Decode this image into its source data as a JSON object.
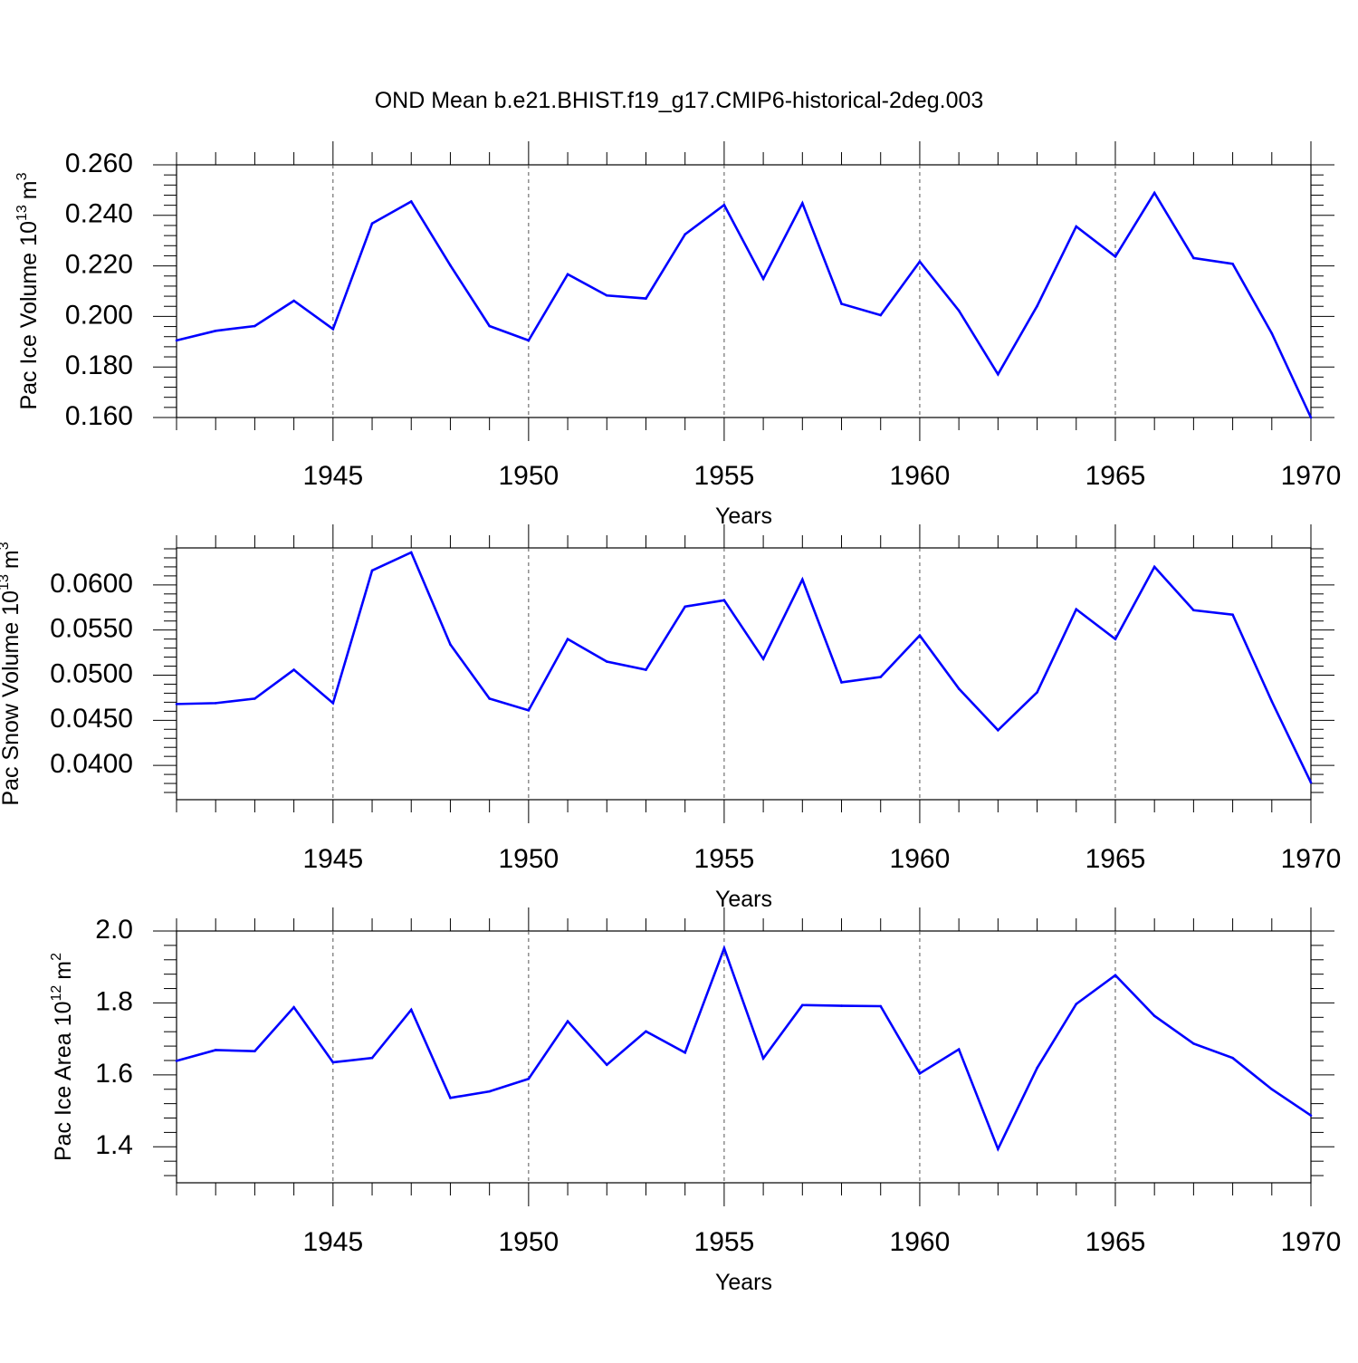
{
  "chart_data": [
    {
      "type": "line",
      "title": "OND Mean b.e21.BHIST.f19_g17.CMIP6-historical-2deg.003",
      "xlabel": "Years",
      "ylabel": "Pac Ice Volume",
      "ylabel_unit_base": "10",
      "ylabel_unit_exp": "13",
      "ylabel_unit_name": "m",
      "ylabel_unit_power": "3",
      "xlim": [
        1941,
        1970
      ],
      "ylim": [
        0.16,
        0.26
      ],
      "yticks": [
        0.16,
        0.18,
        0.2,
        0.22,
        0.24,
        0.26
      ],
      "ytick_labels": [
        "0.160",
        "0.180",
        "0.200",
        "0.220",
        "0.240",
        "0.260"
      ],
      "xticks": [
        1945,
        1950,
        1955,
        1960,
        1965,
        1970
      ],
      "xtick_labels": [
        "1945",
        "1950",
        "1955",
        "1960",
        "1965",
        "1970"
      ],
      "grid_x": [
        1945,
        1950,
        1955,
        1960,
        1965
      ],
      "series": [
        {
          "name": "Pac Ice Volume",
          "color": "#0000ff",
          "x": [
            1941,
            1942,
            1943,
            1944,
            1945,
            1946,
            1947,
            1948,
            1949,
            1950,
            1951,
            1952,
            1953,
            1954,
            1955,
            1956,
            1957,
            1958,
            1959,
            1960,
            1961,
            1962,
            1963,
            1964,
            1965,
            1966,
            1967,
            1968,
            1969,
            1970
          ],
          "values": [
            0.1905,
            0.1943,
            0.1962,
            0.2062,
            0.195,
            0.2368,
            0.2455,
            0.2202,
            0.1962,
            0.1905,
            0.2167,
            0.2083,
            0.2071,
            0.2325,
            0.2441,
            0.2149,
            0.2448,
            0.205,
            0.2005,
            0.2217,
            0.2023,
            0.1771,
            0.2041,
            0.2356,
            0.2237,
            0.2489,
            0.2231,
            0.2208,
            0.1933,
            0.16
          ]
        }
      ]
    },
    {
      "type": "line",
      "title": "",
      "xlabel": "Years",
      "ylabel": "Pac Snow Volume",
      "ylabel_unit_base": "10",
      "ylabel_unit_exp": "13",
      "ylabel_unit_name": "m",
      "ylabel_unit_power": "3",
      "xlim": [
        1941,
        1970
      ],
      "ylim": [
        0.0362,
        0.0641
      ],
      "yticks": [
        0.04,
        0.045,
        0.05,
        0.055,
        0.06
      ],
      "ytick_labels": [
        "0.0400",
        "0.0450",
        "0.0500",
        "0.0550",
        "0.0600"
      ],
      "xticks": [
        1945,
        1950,
        1955,
        1960,
        1965,
        1970
      ],
      "xtick_labels": [
        "1945",
        "1950",
        "1955",
        "1960",
        "1965",
        "1970"
      ],
      "grid_x": [
        1945,
        1950,
        1955,
        1960,
        1965
      ],
      "series": [
        {
          "name": "Pac Snow Volume",
          "color": "#0000ff",
          "x": [
            1941,
            1942,
            1943,
            1944,
            1945,
            1946,
            1947,
            1948,
            1949,
            1950,
            1951,
            1952,
            1953,
            1954,
            1955,
            1956,
            1957,
            1958,
            1959,
            1960,
            1961,
            1962,
            1963,
            1964,
            1965,
            1966,
            1967,
            1968,
            1969,
            1970
          ],
          "values": [
            0.0468,
            0.0469,
            0.0474,
            0.0506,
            0.0469,
            0.0616,
            0.0636,
            0.0534,
            0.0474,
            0.0461,
            0.054,
            0.0515,
            0.0506,
            0.0576,
            0.0583,
            0.0518,
            0.0606,
            0.0492,
            0.0498,
            0.0544,
            0.0485,
            0.0439,
            0.0481,
            0.0573,
            0.054,
            0.062,
            0.0572,
            0.0567,
            0.0471,
            0.0381
          ]
        }
      ]
    },
    {
      "type": "line",
      "title": "",
      "xlabel": "Years",
      "ylabel": "Pac Ice Area",
      "ylabel_unit_base": "10",
      "ylabel_unit_exp": "12",
      "ylabel_unit_name": "m",
      "ylabel_unit_power": "2",
      "xlim": [
        1941,
        1970
      ],
      "ylim": [
        1.3,
        2.0
      ],
      "yticks": [
        1.4,
        1.6,
        1.8,
        2.0
      ],
      "ytick_labels": [
        "1.4",
        "1.6",
        "1.8",
        "2.0"
      ],
      "xticks": [
        1945,
        1950,
        1955,
        1960,
        1965,
        1970
      ],
      "xtick_labels": [
        "1945",
        "1950",
        "1955",
        "1960",
        "1965",
        "1970"
      ],
      "grid_x": [
        1945,
        1950,
        1955,
        1960,
        1965
      ],
      "series": [
        {
          "name": "Pac Ice Area",
          "color": "#0000ff",
          "x": [
            1941,
            1942,
            1943,
            1944,
            1945,
            1946,
            1947,
            1948,
            1949,
            1950,
            1951,
            1952,
            1953,
            1954,
            1955,
            1956,
            1957,
            1958,
            1959,
            1960,
            1961,
            1962,
            1963,
            1964,
            1965,
            1966,
            1967,
            1968,
            1969,
            1970
          ],
          "values": [
            1.639,
            1.669,
            1.666,
            1.788,
            1.635,
            1.647,
            1.781,
            1.536,
            1.554,
            1.589,
            1.749,
            1.628,
            1.721,
            1.662,
            1.952,
            1.646,
            1.794,
            1.792,
            1.791,
            1.604,
            1.671,
            1.394,
            1.619,
            1.797,
            1.877,
            1.764,
            1.687,
            1.647,
            1.56,
            1.487
          ]
        }
      ]
    }
  ]
}
